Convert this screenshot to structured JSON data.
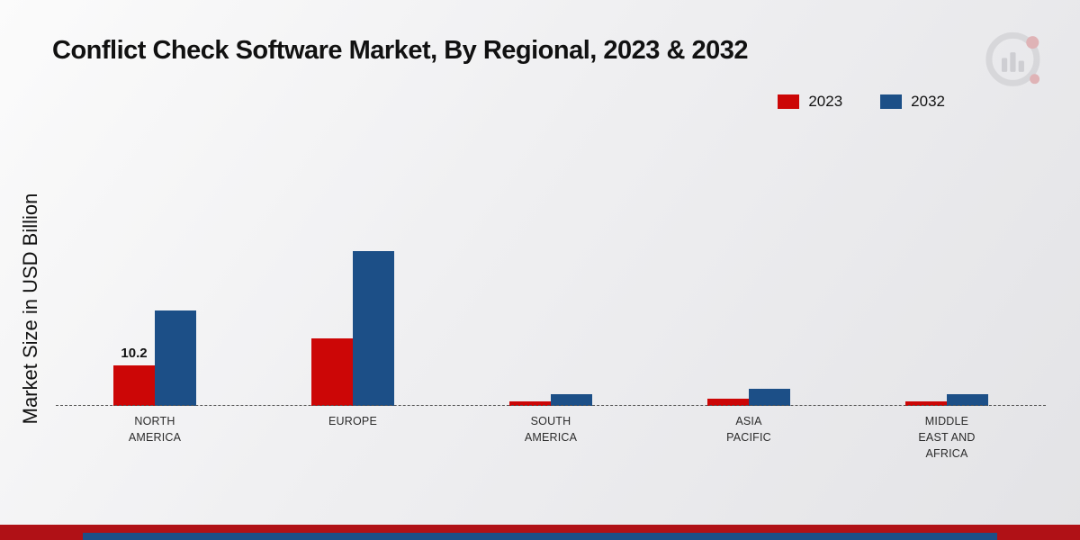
{
  "title": "Conflict Check Software Market, By Regional, 2023 & 2032",
  "ylabel": "Market Size in USD Billion",
  "legend": [
    {
      "label": "2023",
      "color": "#cc0606"
    },
    {
      "label": "2032",
      "color": "#1c4f87"
    }
  ],
  "logo": {
    "name": "market-research-logo"
  },
  "chart_data": {
    "type": "bar",
    "title": "Conflict Check Software Market, By Regional, 2023 & 2032",
    "xlabel": "",
    "ylabel": "Market Size in USD Billion",
    "categories": [
      "NORTH AMERICA",
      "EUROPE",
      "SOUTH AMERICA",
      "ASIA PACIFIC",
      "MIDDLE EAST AND AFRICA"
    ],
    "series": [
      {
        "name": "2023",
        "color": "#cc0606",
        "values": [
          10.2,
          17.0,
          1.2,
          1.9,
          1.2
        ]
      },
      {
        "name": "2032",
        "color": "#1c4f87",
        "values": [
          24.0,
          39.0,
          2.9,
          4.3,
          3.0
        ]
      }
    ],
    "bar_labels": [
      [
        "10.2",
        "",
        "",
        "",
        ""
      ],
      [
        "",
        "",
        "",
        "",
        ""
      ]
    ],
    "ylim": [
      0,
      40
    ],
    "grid": false,
    "legend_position": "top-right",
    "baseline_style": "dashed"
  }
}
